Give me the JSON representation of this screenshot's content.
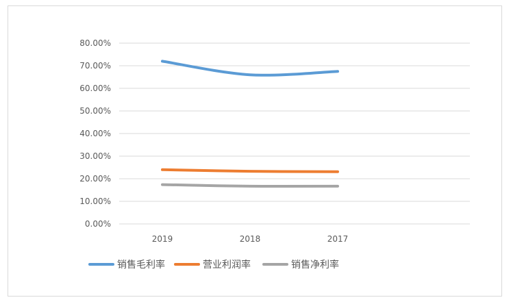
{
  "chart_data": {
    "type": "line",
    "categories": [
      "2019",
      "2018",
      "2017"
    ],
    "series": [
      {
        "name": "销售毛利率",
        "values": [
          72.0,
          66.0,
          67.5
        ],
        "color": "#5b9bd5"
      },
      {
        "name": "营业利润率",
        "values": [
          24.0,
          23.3,
          23.1
        ],
        "color": "#ed7d31"
      },
      {
        "name": "销售净利率",
        "values": [
          17.4,
          16.7,
          16.7
        ],
        "color": "#a5a5a5"
      }
    ],
    "ytick_labels": [
      "0.00%",
      "10.00%",
      "20.00%",
      "30.00%",
      "40.00%",
      "50.00%",
      "60.00%",
      "70.00%",
      "80.00%"
    ],
    "ylim": [
      0,
      80
    ],
    "grid": true,
    "legend_position": "bottom-left",
    "title": "",
    "xlabel": "",
    "ylabel": ""
  }
}
